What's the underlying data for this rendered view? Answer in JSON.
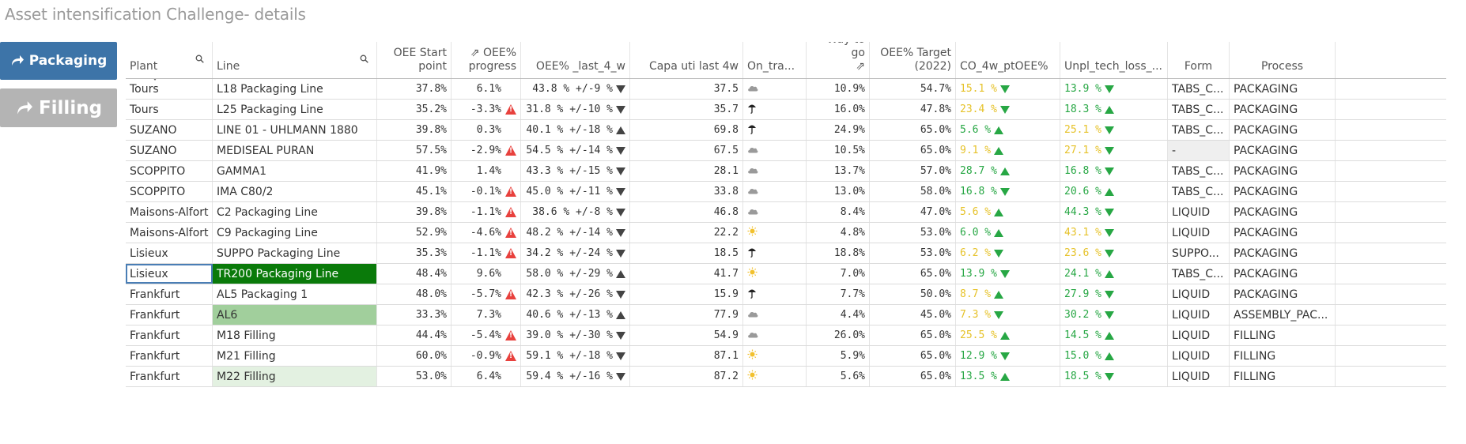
{
  "page_title": "Asset intensification Challenge- details",
  "nav": {
    "packaging_label": "Packaging",
    "filling_label": "Filling"
  },
  "columns": [
    {
      "key": "plant",
      "label": "Plant",
      "w": 110,
      "align": "txt",
      "search": true
    },
    {
      "key": "line",
      "label": "Line",
      "w": 208,
      "align": "txt",
      "search": true
    },
    {
      "key": "oee_start",
      "label": "OEE Start\npoint",
      "w": 94,
      "align": "num"
    },
    {
      "key": "oee_progress",
      "label": "⇗ OEE%\nprogress",
      "w": 88,
      "align": "num"
    },
    {
      "key": "oee_last4",
      "label": "OEE% _last_4_w",
      "w": 138,
      "align": "num"
    },
    {
      "key": "capa",
      "label": "Capa uti last 4w",
      "w": 143,
      "align": "num"
    },
    {
      "key": "on_track",
      "label": "On_tra...",
      "w": 80,
      "align": "txt"
    },
    {
      "key": "way_to_go",
      "label": "Way to go\n⇗",
      "w": 80,
      "align": "num"
    },
    {
      "key": "oee_target",
      "label": "OEE% Target\n(2022)",
      "w": 109,
      "align": "num"
    },
    {
      "key": "co_4w",
      "label": "CO_4w_ptOEE%",
      "w": 132,
      "align": "txt"
    },
    {
      "key": "unpl",
      "label": "Unpl_tech_loss_...",
      "w": 136,
      "align": "txt"
    },
    {
      "key": "form",
      "label": "Form",
      "w": 78,
      "align": "c"
    },
    {
      "key": "process",
      "label": "Process",
      "w": 134,
      "align": "c"
    },
    {
      "key": "extra",
      "label": "",
      "w": 140,
      "align": "txt"
    }
  ],
  "rows": [
    {
      "plant": "Tours",
      "line": "L18 Packaging Line",
      "oee_start": "37.8%",
      "oee_progress": "6.1%",
      "prog_warn": false,
      "oee_last4": "43.8 % +/-9 %",
      "last4_dir": "down",
      "capa": "37.5",
      "on_track": "cloud",
      "way_to_go": "10.9%",
      "oee_target": "54.7%",
      "co_4w": "15.1 %",
      "co_color": "yellow",
      "co_dir": "down",
      "unpl": "13.9 %",
      "unpl_color": "green",
      "unpl_dir": "down",
      "form": "TABS_C...",
      "process": "PACKAGING",
      "line_bg": "",
      "form_bg": ""
    },
    {
      "plant": "Tours",
      "line": "L25 Packaging Line",
      "oee_start": "35.2%",
      "oee_progress": "-3.3%",
      "prog_warn": true,
      "oee_last4": "31.8 % +/-10 %",
      "last4_dir": "down",
      "capa": "35.7",
      "on_track": "umbrella",
      "way_to_go": "16.0%",
      "oee_target": "47.8%",
      "co_4w": "23.4 %",
      "co_color": "yellow",
      "co_dir": "down",
      "unpl": "18.3 %",
      "unpl_color": "green",
      "unpl_dir": "up",
      "form": "TABS_C...",
      "process": "PACKAGING",
      "line_bg": "",
      "form_bg": ""
    },
    {
      "plant": "SUZANO",
      "line": "LINE 01 - UHLMANN 1880",
      "oee_start": "39.8%",
      "oee_progress": "0.3%",
      "prog_warn": false,
      "oee_last4": "40.1 % +/-18 %",
      "last4_dir": "up",
      "capa": "69.8",
      "on_track": "umbrella",
      "way_to_go": "24.9%",
      "oee_target": "65.0%",
      "co_4w": "5.6 %",
      "co_color": "green",
      "co_dir": "up",
      "unpl": "25.1 %",
      "unpl_color": "yellow",
      "unpl_dir": "down",
      "form": "TABS_C...",
      "process": "PACKAGING",
      "line_bg": "",
      "form_bg": ""
    },
    {
      "plant": "SUZANO",
      "line": "MEDISEAL PURAN",
      "oee_start": "57.5%",
      "oee_progress": "-2.9%",
      "prog_warn": true,
      "oee_last4": "54.5 % +/-14 %",
      "last4_dir": "down",
      "capa": "67.5",
      "on_track": "cloud",
      "way_to_go": "10.5%",
      "oee_target": "65.0%",
      "co_4w": "9.1 %",
      "co_color": "yellow",
      "co_dir": "up",
      "unpl": "27.1 %",
      "unpl_color": "yellow",
      "unpl_dir": "down",
      "form": "-",
      "process": "PACKAGING",
      "line_bg": "",
      "form_bg": "grey"
    },
    {
      "plant": "SCOPPITO",
      "line": "GAMMA1",
      "oee_start": "41.9%",
      "oee_progress": "1.4%",
      "prog_warn": false,
      "oee_last4": "43.3 % +/-15 %",
      "last4_dir": "down",
      "capa": "28.1",
      "on_track": "cloud",
      "way_to_go": "13.7%",
      "oee_target": "57.0%",
      "co_4w": "28.7 %",
      "co_color": "green",
      "co_dir": "up",
      "unpl": "16.8 %",
      "unpl_color": "green",
      "unpl_dir": "down",
      "form": "TABS_C...",
      "process": "PACKAGING",
      "line_bg": "",
      "form_bg": ""
    },
    {
      "plant": "SCOPPITO",
      "line": "IMA C80/2",
      "oee_start": "45.1%",
      "oee_progress": "-0.1%",
      "prog_warn": true,
      "oee_last4": "45.0 % +/-11 %",
      "last4_dir": "down",
      "capa": "33.8",
      "on_track": "cloud",
      "way_to_go": "13.0%",
      "oee_target": "58.0%",
      "co_4w": "16.8 %",
      "co_color": "green",
      "co_dir": "down",
      "unpl": "20.6 %",
      "unpl_color": "green",
      "unpl_dir": "up",
      "form": "TABS_C...",
      "process": "PACKAGING",
      "line_bg": "",
      "form_bg": ""
    },
    {
      "plant": "Maisons-Alfort",
      "line": "C2 Packaging Line",
      "oee_start": "39.8%",
      "oee_progress": "-1.1%",
      "prog_warn": true,
      "oee_last4": "38.6 % +/-8 %",
      "last4_dir": "down",
      "capa": "46.8",
      "on_track": "cloud",
      "way_to_go": "8.4%",
      "oee_target": "47.0%",
      "co_4w": "5.6 %",
      "co_color": "yellow",
      "co_dir": "up",
      "unpl": "44.3 %",
      "unpl_color": "green",
      "unpl_dir": "down",
      "form": "LIQUID",
      "process": "PACKAGING",
      "line_bg": "",
      "form_bg": ""
    },
    {
      "plant": "Maisons-Alfort",
      "line": "C9 Packaging Line",
      "oee_start": "52.9%",
      "oee_progress": "-4.6%",
      "prog_warn": true,
      "oee_last4": "48.2 % +/-14 %",
      "last4_dir": "down",
      "capa": "22.2",
      "on_track": "sun",
      "way_to_go": "4.8%",
      "oee_target": "53.0%",
      "co_4w": "6.0 %",
      "co_color": "green",
      "co_dir": "up",
      "unpl": "43.1 %",
      "unpl_color": "yellow",
      "unpl_dir": "down",
      "form": "LIQUID",
      "process": "PACKAGING",
      "line_bg": "",
      "form_bg": ""
    },
    {
      "plant": "Lisieux",
      "line": "SUPPO Packaging Line",
      "oee_start": "35.3%",
      "oee_progress": "-1.1%",
      "prog_warn": true,
      "oee_last4": "34.2 % +/-24 %",
      "last4_dir": "down",
      "capa": "18.5",
      "on_track": "umbrella",
      "way_to_go": "18.8%",
      "oee_target": "53.0%",
      "co_4w": "6.2 %",
      "co_color": "yellow",
      "co_dir": "down",
      "unpl": "23.6 %",
      "unpl_color": "yellow",
      "unpl_dir": "down",
      "form": "SUPPO...",
      "process": "PACKAGING",
      "line_bg": "",
      "form_bg": ""
    },
    {
      "plant": "Lisieux",
      "line": "TR200 Packaging Line",
      "oee_start": "48.4%",
      "oee_progress": "9.6%",
      "prog_warn": false,
      "oee_last4": "58.0 % +/-29 %",
      "last4_dir": "up",
      "capa": "41.7",
      "on_track": "sun",
      "way_to_go": "7.0%",
      "oee_target": "65.0%",
      "co_4w": "13.9 %",
      "co_color": "green",
      "co_dir": "down",
      "unpl": "24.1 %",
      "unpl_color": "green",
      "unpl_dir": "up",
      "form": "TABS_C...",
      "process": "PACKAGING",
      "line_bg": "dark",
      "form_bg": "",
      "plant_selected": true
    },
    {
      "plant": "Frankfurt",
      "line": "AL5 Packaging 1",
      "oee_start": "48.0%",
      "oee_progress": "-5.7%",
      "prog_warn": true,
      "oee_last4": "42.3 % +/-26 %",
      "last4_dir": "down",
      "capa": "15.9",
      "on_track": "umbrella",
      "way_to_go": "7.7%",
      "oee_target": "50.0%",
      "co_4w": "8.7 %",
      "co_color": "yellow",
      "co_dir": "up",
      "unpl": "27.9 %",
      "unpl_color": "green",
      "unpl_dir": "down",
      "form": "LIQUID",
      "process": "PACKAGING",
      "line_bg": "",
      "form_bg": ""
    },
    {
      "plant": "Frankfurt",
      "line": "AL6",
      "oee_start": "33.3%",
      "oee_progress": "7.3%",
      "prog_warn": false,
      "oee_last4": "40.6 % +/-13 %",
      "last4_dir": "up",
      "capa": "77.9",
      "on_track": "cloud",
      "way_to_go": "4.4%",
      "oee_target": "45.0%",
      "co_4w": "7.3 %",
      "co_color": "yellow",
      "co_dir": "down",
      "unpl": "30.2 %",
      "unpl_color": "green",
      "unpl_dir": "down",
      "form": "LIQUID",
      "process": "ASSEMBLY_PAC...",
      "line_bg": "mid",
      "form_bg": ""
    },
    {
      "plant": "Frankfurt",
      "line": "M18 Filling",
      "oee_start": "44.4%",
      "oee_progress": "-5.4%",
      "prog_warn": true,
      "oee_last4": "39.0 % +/-30 %",
      "last4_dir": "down",
      "capa": "54.9",
      "on_track": "cloud",
      "way_to_go": "26.0%",
      "oee_target": "65.0%",
      "co_4w": "25.5 %",
      "co_color": "yellow",
      "co_dir": "up",
      "unpl": "14.5 %",
      "unpl_color": "green",
      "unpl_dir": "up",
      "form": "LIQUID",
      "process": "FILLING",
      "line_bg": "",
      "form_bg": ""
    },
    {
      "plant": "Frankfurt",
      "line": "M21 Filling",
      "oee_start": "60.0%",
      "oee_progress": "-0.9%",
      "prog_warn": true,
      "oee_last4": "59.1 % +/-18 %",
      "last4_dir": "down",
      "capa": "87.1",
      "on_track": "sun",
      "way_to_go": "5.9%",
      "oee_target": "65.0%",
      "co_4w": "12.9 %",
      "co_color": "green",
      "co_dir": "down",
      "unpl": "15.0 %",
      "unpl_color": "green",
      "unpl_dir": "up",
      "form": "LIQUID",
      "process": "FILLING",
      "line_bg": "",
      "form_bg": ""
    },
    {
      "plant": "Frankfurt",
      "line": "M22 Filling",
      "oee_start": "53.0%",
      "oee_progress": "6.4%",
      "prog_warn": false,
      "oee_last4": "59.4 % +/-16 %",
      "last4_dir": "down",
      "capa": "87.2",
      "on_track": "sun",
      "way_to_go": "5.6%",
      "oee_target": "65.0%",
      "co_4w": "13.5 %",
      "co_color": "green",
      "co_dir": "up",
      "unpl": "18.5 %",
      "unpl_color": "green",
      "unpl_dir": "down",
      "form": "LIQUID",
      "process": "FILLING",
      "line_bg": "light",
      "form_bg": ""
    }
  ],
  "colors": {
    "green": "#27a744",
    "yellow": "#e6c229",
    "nav_blue": "#3d74a8",
    "nav_grey": "#b4b4b4"
  }
}
